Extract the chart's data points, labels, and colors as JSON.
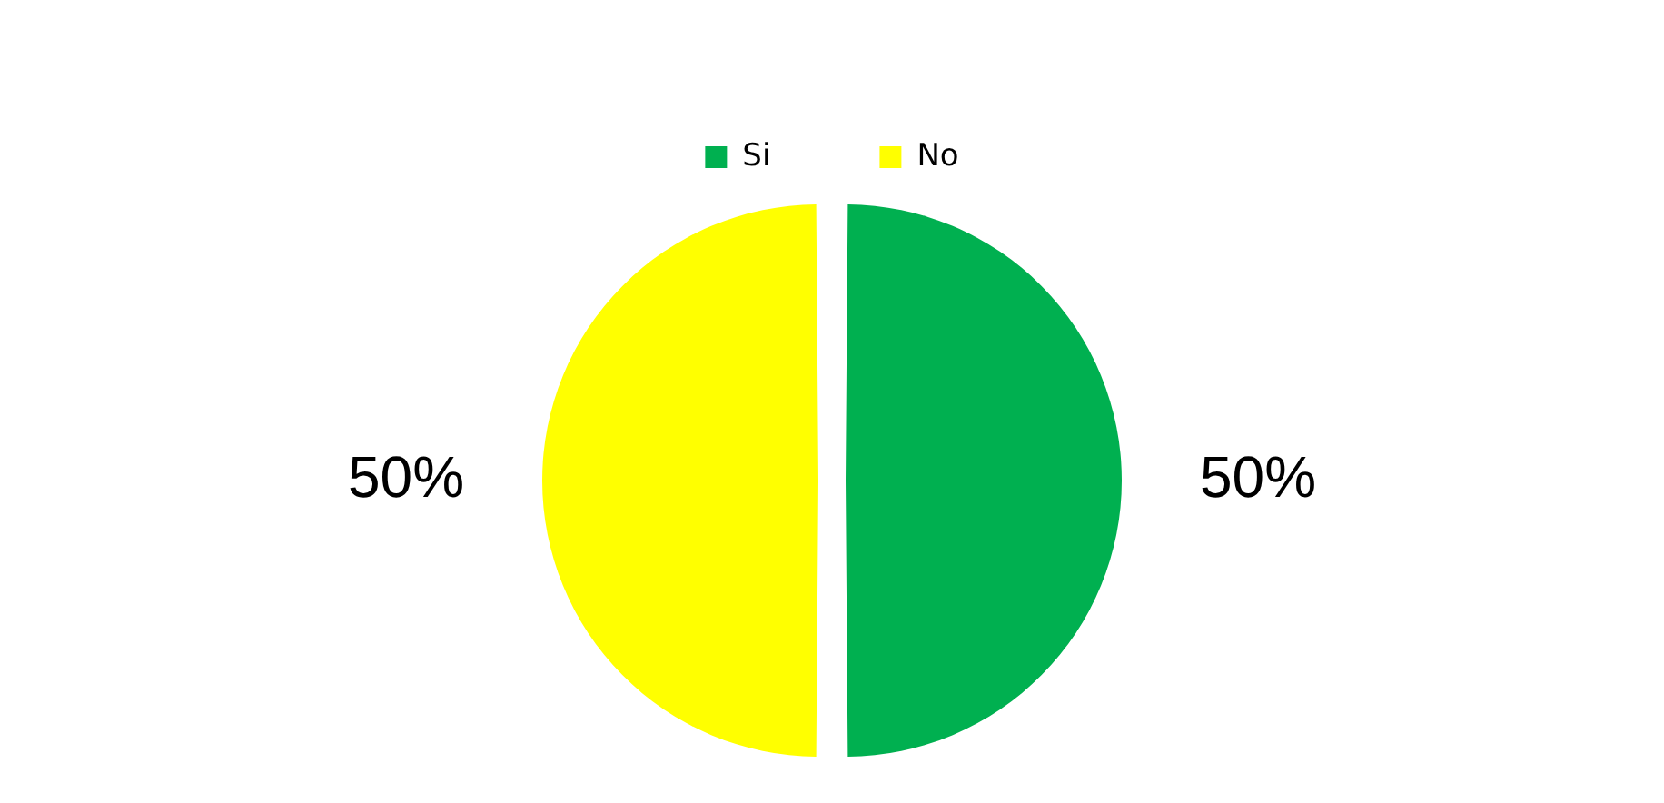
{
  "chart_data": {
    "type": "pie",
    "categories": [
      "Si",
      "No"
    ],
    "values": [
      50,
      50
    ],
    "colors": [
      "#00b050",
      "#ffff00"
    ],
    "value_labels": [
      "50%",
      "50%"
    ],
    "legend": "top"
  }
}
